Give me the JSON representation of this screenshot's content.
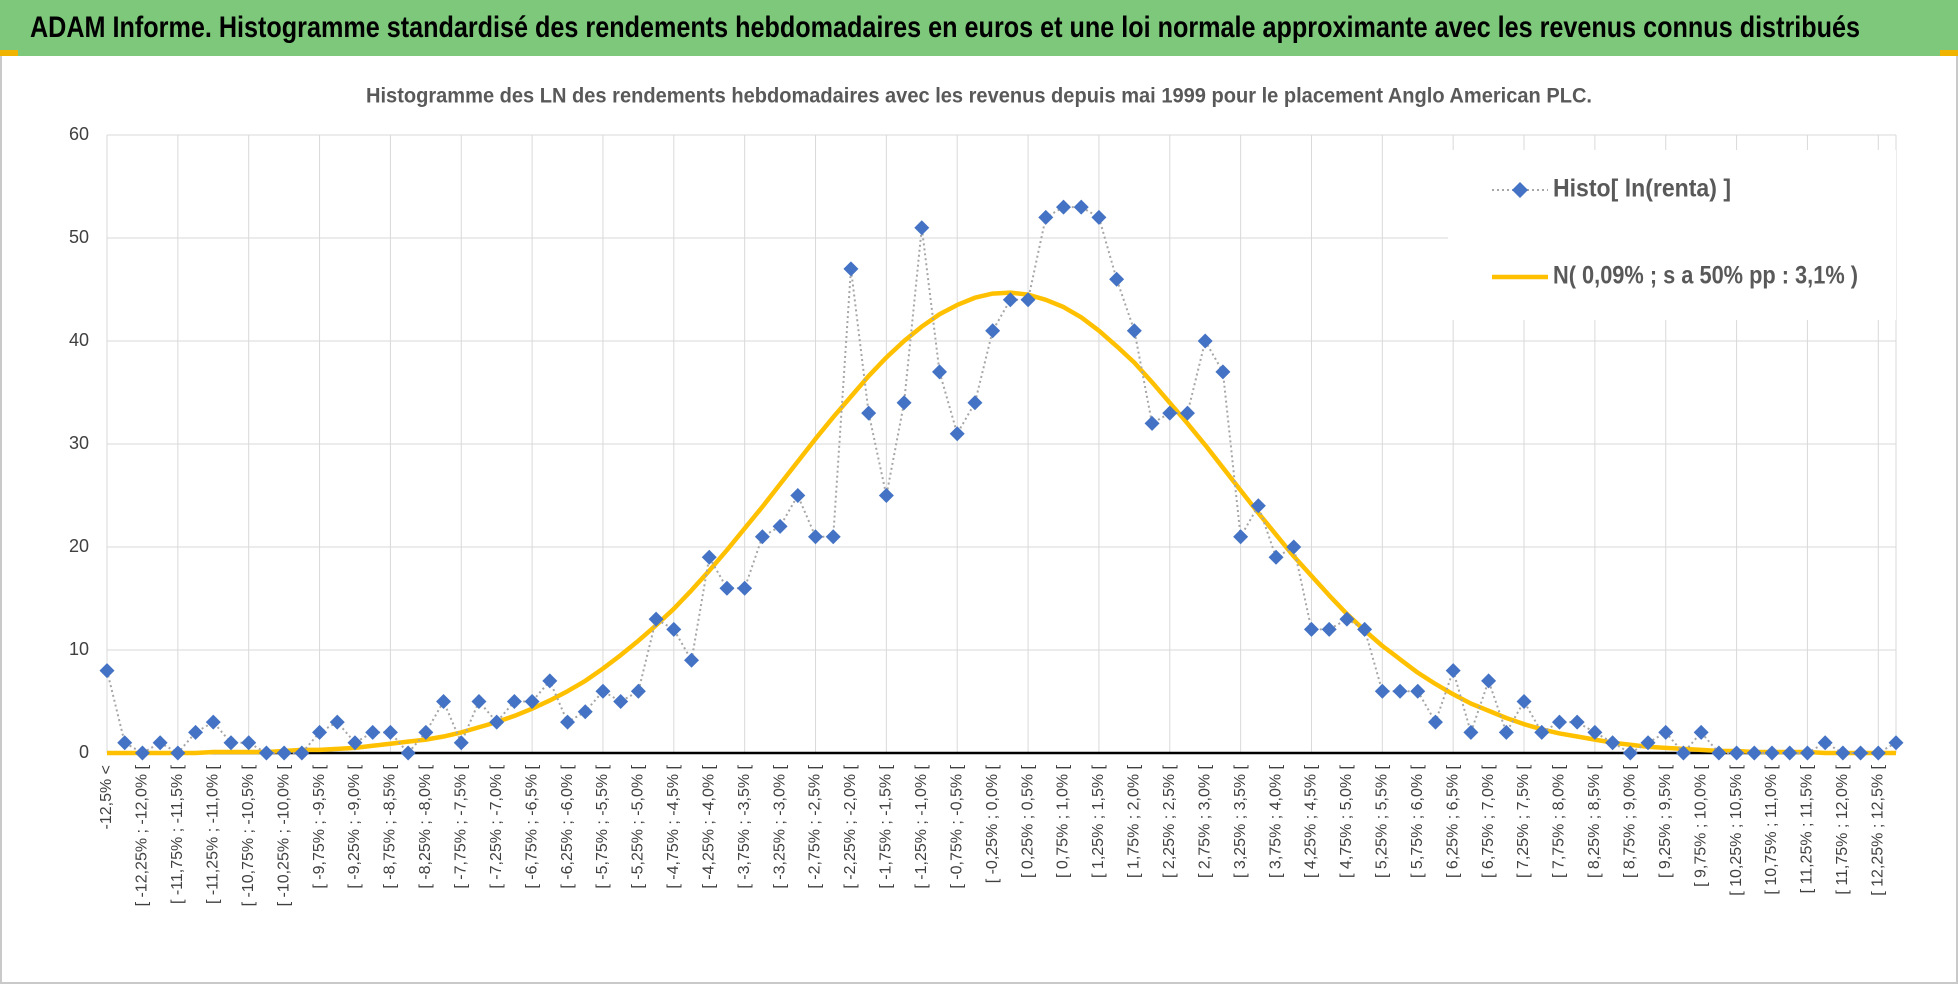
{
  "header": {
    "title": "ADAM Informe. Histogramme standardisé des rendements hebdomadaires en euros et une loi normale approximante avec les revenus connus distribués"
  },
  "chart_data": {
    "type": "line",
    "title": "Histogramme des LN des rendements hebdomadaires avec les revenus depuis mai 1999 pour le placement Anglo American PLC.",
    "categories": [
      "-12,5% <",
      null,
      "[ -12,25% ; -12,0% [",
      null,
      "[ -11,75% ; -11,5% [",
      null,
      "[ -11,25% ; -11,0% [",
      null,
      "[ -10,75% ; -10,5% [",
      null,
      "[ -10,25% ; -10,0% [",
      null,
      "[ -9,75% ; -9,5% [",
      null,
      "[ -9,25% ; -9,0% [",
      null,
      "[ -8,75% ; -8,5% [",
      null,
      "[ -8,25% ; -8,0% [",
      null,
      "[ -7,75% ; -7,5% [",
      null,
      "[ -7,25% ; -7,0% [",
      null,
      "[ -6,75% ; -6,5% [",
      null,
      "[ -6,25% ; -6,0% [",
      null,
      "[ -5,75% ; -5,5% [",
      null,
      "[ -5,25% ; -5,0% [",
      null,
      "[ -4,75% ; -4,5% [",
      null,
      "[ -4,25% ; -4,0% [",
      null,
      "[ -3,75% ; -3,5% [",
      null,
      "[ -3,25% ; -3,0% [",
      null,
      "[ -2,75% ; -2,5% [",
      null,
      "[ -2,25% ; -2,0% [",
      null,
      "[ -1,75% ; -1,5% [",
      null,
      "[ -1,25% ; -1,0% [",
      null,
      "[ -0,75% ; -0,5% [",
      null,
      "[ -0,25% ; 0,0% [",
      null,
      "[ 0,25% ; 0,5% [",
      null,
      "[ 0,75% ; 1,0% [",
      null,
      "[ 1,25% ; 1,5% [",
      null,
      "[ 1,75% ; 2,0% [",
      null,
      "[ 2,25% ; 2,5% [",
      null,
      "[ 2,75% ; 3,0% [",
      null,
      "[ 3,25% ; 3,5% [",
      null,
      "[ 3,75% ; 4,0% [",
      null,
      "[ 4,25% ; 4,5% [",
      null,
      "[ 4,75% ; 5,0% [",
      null,
      "[ 5,25% ; 5,5% [",
      null,
      "[ 5,75% ; 6,0% [",
      null,
      "[ 6,25% ; 6,5% [",
      null,
      "[ 6,75% ; 7,0% [",
      null,
      "[ 7,25% ; 7,5% [",
      null,
      "[ 7,75% ; 8,0% [",
      null,
      "[ 8,25% ; 8,5% [",
      null,
      "[ 8,75% ; 9,0% [",
      null,
      "[ 9,25% ; 9,5% [",
      null,
      "[ 9,75% ; 10,0% [",
      null,
      "[ 10,25% ; 10,5% [",
      null,
      "[ 10,75% ; 11,0% [",
      null,
      "[ 11,25% ; 11,5% [",
      null,
      "[ 11,75% ; 12,0% [",
      null,
      "[ 12,25% ; 12,5% [",
      null
    ],
    "series": [
      {
        "name": "Histo[ ln(renta) ]",
        "color": "#4472c4",
        "line_color": "#a6a6a6",
        "marker": "diamond",
        "values": [
          8,
          1,
          0,
          1,
          0,
          2,
          3,
          1,
          1,
          0,
          0,
          0,
          2,
          3,
          1,
          2,
          2,
          0,
          2,
          5,
          1,
          5,
          3,
          5,
          5,
          7,
          3,
          4,
          6,
          5,
          6,
          13,
          12,
          9,
          19,
          16,
          16,
          21,
          22,
          25,
          21,
          21,
          47,
          33,
          25,
          34,
          51,
          37,
          31,
          34,
          41,
          44,
          44,
          52,
          53,
          53,
          52,
          46,
          41,
          32,
          33,
          33,
          40,
          37,
          21,
          24,
          19,
          20,
          12,
          12,
          13,
          12,
          6,
          6,
          6,
          3,
          8,
          2,
          7,
          2,
          5,
          2,
          3,
          3,
          2,
          1,
          0,
          1,
          2,
          0,
          2,
          0,
          0,
          0,
          0,
          0,
          0,
          1,
          0,
          0,
          0,
          1
        ]
      },
      {
        "name": "N( 0,09% ; s a 50% pp : 3,1% )",
        "color": "#ffc000",
        "values": [
          0,
          0,
          0,
          0,
          0,
          0,
          0.1,
          0.1,
          0.1,
          0.1,
          0.2,
          0.3,
          0.3,
          0.4,
          0.5,
          0.7,
          0.9,
          1.1,
          1.3,
          1.6,
          2.0,
          2.5,
          3.0,
          3.6,
          4.3,
          5.1,
          6.0,
          7.0,
          8.2,
          9.5,
          10.9,
          12.4,
          14.0,
          15.8,
          17.7,
          19.7,
          21.8,
          23.9,
          26.1,
          28.3,
          30.5,
          32.6,
          34.6,
          36.6,
          38.4,
          40.0,
          41.4,
          42.6,
          43.5,
          44.2,
          44.6,
          44.7,
          44.5,
          44.0,
          43.3,
          42.3,
          41.0,
          39.5,
          37.9,
          36.0,
          34.0,
          32.0,
          29.9,
          27.7,
          25.5,
          23.3,
          21.2,
          19.1,
          17.2,
          15.3,
          13.5,
          11.9,
          10.4,
          9.1,
          7.8,
          6.7,
          5.7,
          4.8,
          4.1,
          3.4,
          2.8,
          2.3,
          1.9,
          1.6,
          1.3,
          1.0,
          0.8,
          0.6,
          0.5,
          0.4,
          0.3,
          0.2,
          0.2,
          0.1,
          0.1,
          0.1,
          0.1,
          0,
          0,
          0,
          0,
          0
        ]
      }
    ],
    "ylim": [
      0,
      60
    ],
    "yticks": [
      0,
      10,
      20,
      30,
      40,
      50,
      60
    ],
    "grid": true,
    "legend": "top-right"
  }
}
